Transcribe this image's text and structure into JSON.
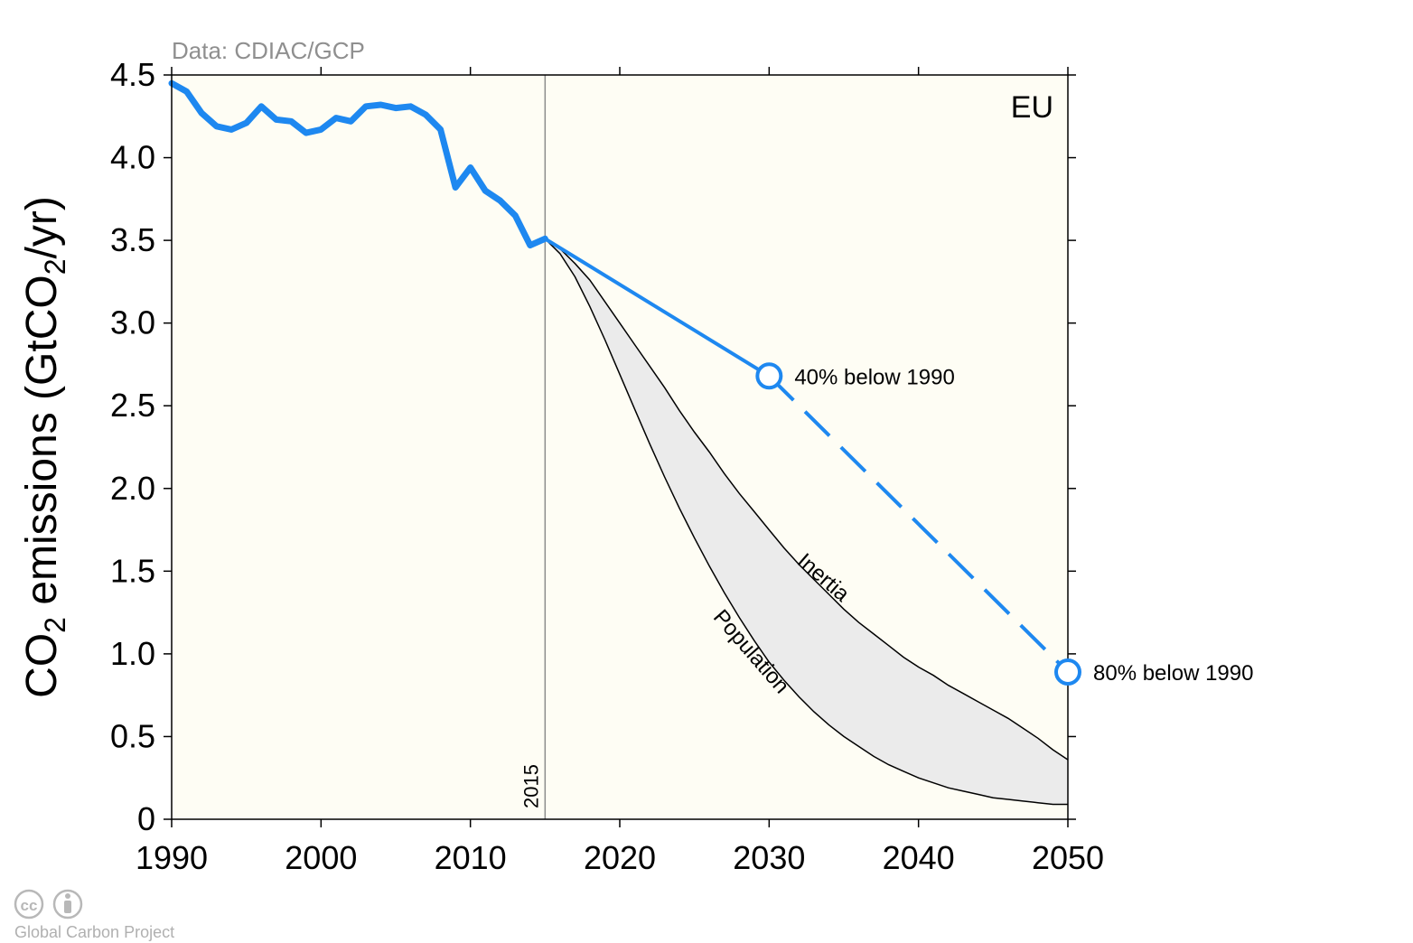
{
  "chart_data": {
    "type": "line",
    "source_note": "Data: CDIAC/GCP",
    "region_label": "EU",
    "ylabel": {
      "prefix": "CO",
      "sub1": "2",
      "mid": " emissions (GtCO",
      "sub2": "2",
      "suffix": "/yr)"
    },
    "xlim": [
      1990,
      2050
    ],
    "ylim": [
      0,
      4.5
    ],
    "x_ticks": [
      "1990",
      "2000",
      "2010",
      "2020",
      "2030",
      "2040",
      "2050"
    ],
    "y_ticks": [
      "0",
      "0.5",
      "1.0",
      "1.5",
      "2.0",
      "2.5",
      "3.0",
      "3.5",
      "4.0",
      "4.5"
    ],
    "reference_year": 2015,
    "reference_label": "2015",
    "historical": {
      "x": [
        1990,
        1991,
        1992,
        1993,
        1994,
        1995,
        1996,
        1997,
        1998,
        1999,
        2000,
        2001,
        2002,
        2003,
        2004,
        2005,
        2006,
        2007,
        2008,
        2009,
        2010,
        2011,
        2012,
        2013,
        2014,
        2015
      ],
      "y": [
        4.45,
        4.4,
        4.27,
        4.19,
        4.17,
        4.21,
        4.31,
        4.23,
        4.22,
        4.15,
        4.17,
        4.24,
        4.22,
        4.31,
        4.32,
        4.3,
        4.31,
        4.26,
        4.17,
        3.82,
        3.94,
        3.8,
        3.74,
        3.65,
        3.47,
        3.51
      ],
      "color": "#1e88f0"
    },
    "pledge_line": {
      "x": [
        2015,
        2030
      ],
      "y": [
        3.51,
        2.68
      ]
    },
    "pledge_dashed": {
      "x": [
        2030,
        2050
      ],
      "y": [
        2.68,
        0.89
      ]
    },
    "targets": [
      {
        "x": 2030,
        "y": 2.68,
        "label": "40% below 1990"
      },
      {
        "x": 2050,
        "y": 0.89,
        "label": "80% below 1990"
      }
    ],
    "inertia": {
      "label": "Inertia",
      "x": [
        2015,
        2016,
        2017,
        2018,
        2019,
        2020,
        2021,
        2022,
        2023,
        2024,
        2025,
        2026,
        2027,
        2028,
        2029,
        2030,
        2031,
        2032,
        2033,
        2034,
        2035,
        2036,
        2037,
        2038,
        2039,
        2040,
        2041,
        2042,
        2043,
        2044,
        2045,
        2046,
        2047,
        2048,
        2049,
        2050
      ],
      "y": [
        3.51,
        3.45,
        3.36,
        3.26,
        3.13,
        3.0,
        2.87,
        2.74,
        2.61,
        2.47,
        2.34,
        2.22,
        2.09,
        1.97,
        1.86,
        1.75,
        1.64,
        1.54,
        1.45,
        1.36,
        1.27,
        1.19,
        1.12,
        1.05,
        0.98,
        0.92,
        0.87,
        0.81,
        0.76,
        0.71,
        0.66,
        0.61,
        0.55,
        0.49,
        0.42,
        0.36
      ]
    },
    "population": {
      "label": "Population",
      "x": [
        2015,
        2016,
        2017,
        2018,
        2019,
        2020,
        2021,
        2022,
        2023,
        2024,
        2025,
        2026,
        2027,
        2028,
        2029,
        2030,
        2031,
        2032,
        2033,
        2034,
        2035,
        2036,
        2037,
        2038,
        2039,
        2040,
        2041,
        2042,
        2043,
        2044,
        2045,
        2046,
        2047,
        2048,
        2049,
        2050
      ],
      "y": [
        3.51,
        3.42,
        3.28,
        3.1,
        2.9,
        2.69,
        2.48,
        2.27,
        2.07,
        1.88,
        1.7,
        1.53,
        1.37,
        1.22,
        1.08,
        0.95,
        0.84,
        0.74,
        0.65,
        0.57,
        0.5,
        0.44,
        0.38,
        0.33,
        0.29,
        0.25,
        0.22,
        0.19,
        0.17,
        0.15,
        0.13,
        0.12,
        0.11,
        0.1,
        0.09,
        0.09
      ]
    },
    "band_color": "#ebebeb",
    "plot_background": "#fefdf4",
    "grid": false,
    "legend": "none"
  },
  "footer": {
    "org": "Global Carbon Project",
    "license_glyph": "cc"
  }
}
